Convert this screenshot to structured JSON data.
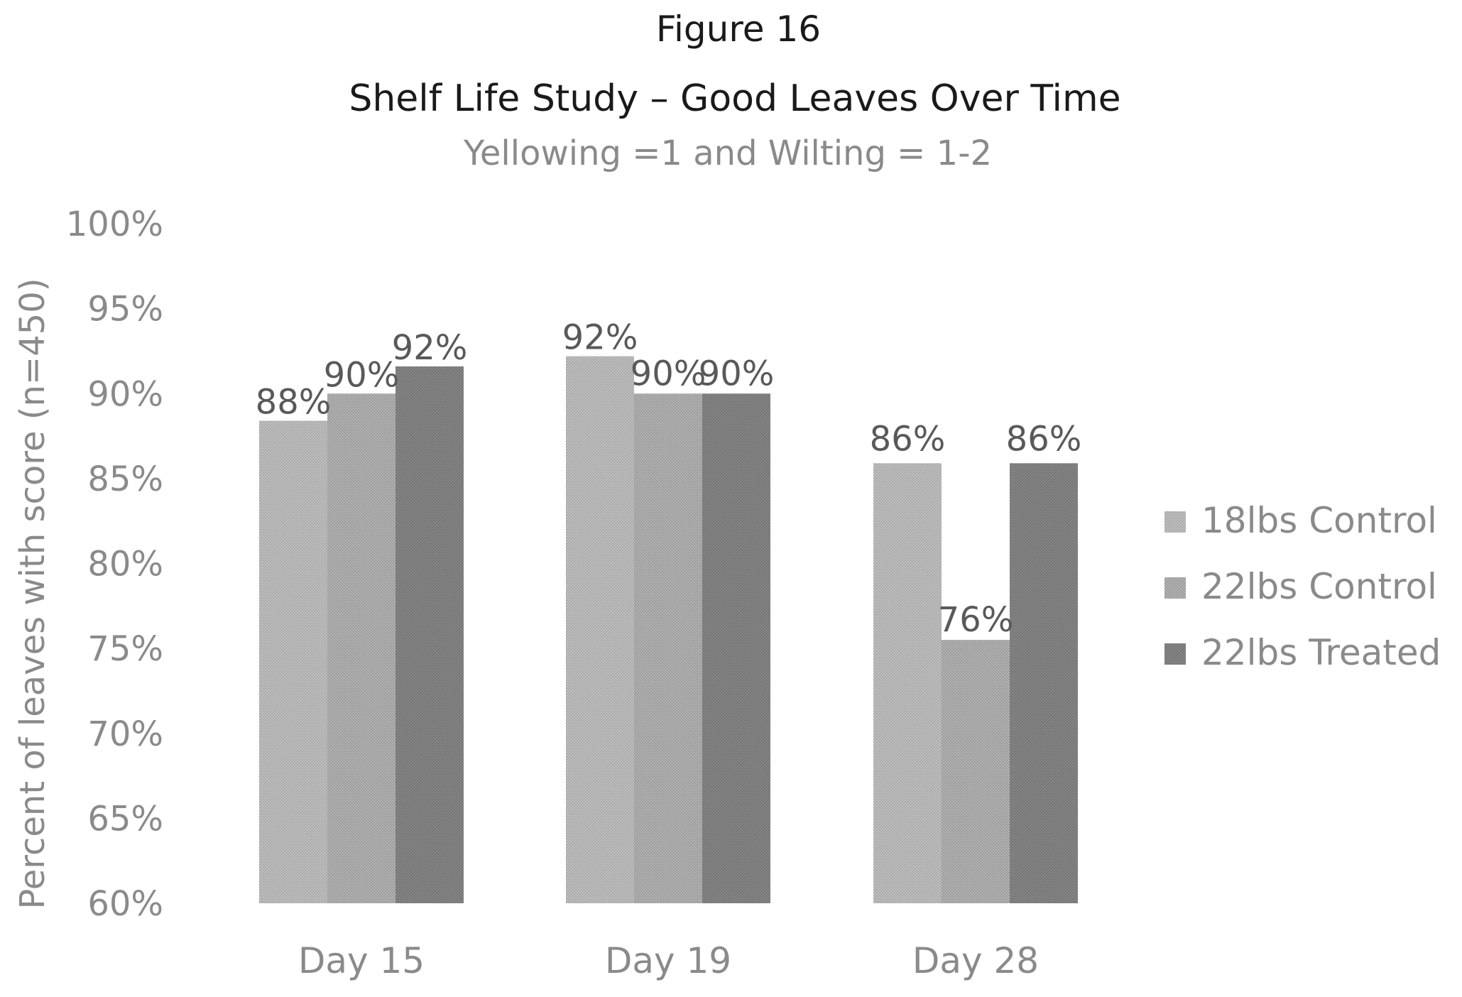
{
  "figure_label": "Figure 16",
  "chart_data": {
    "type": "bar",
    "title": "Shelf Life Study – Good Leaves Over Time",
    "subtitle": "Yellowing =1 and Wilting = 1-2",
    "xlabel": "",
    "ylabel": "Percent of leaves with score (n=450)",
    "ylim": [
      60,
      100
    ],
    "yticks": [
      "60%",
      "65%",
      "70%",
      "75%",
      "80%",
      "85%",
      "90%",
      "95%",
      "100%"
    ],
    "categories": [
      "Day 15",
      "Day 19",
      "Day 28"
    ],
    "series": [
      {
        "name": "18lbs Control",
        "values": [
          88.4,
          92.2,
          85.9
        ],
        "labels": [
          "88%",
          "92%",
          "86%"
        ],
        "color": "#b3b3b3"
      },
      {
        "name": "22lbs Control",
        "values": [
          90,
          90,
          75.5
        ],
        "labels": [
          "90%",
          "90%",
          "76%"
        ],
        "color": "#a6a6a6"
      },
      {
        "name": "22lbs Treated",
        "values": [
          91.6,
          90,
          85.9
        ],
        "labels": [
          "92%",
          "90%",
          "86%"
        ],
        "color": "#7f7f7f"
      }
    ],
    "grid": false,
    "legend_position": "right"
  }
}
